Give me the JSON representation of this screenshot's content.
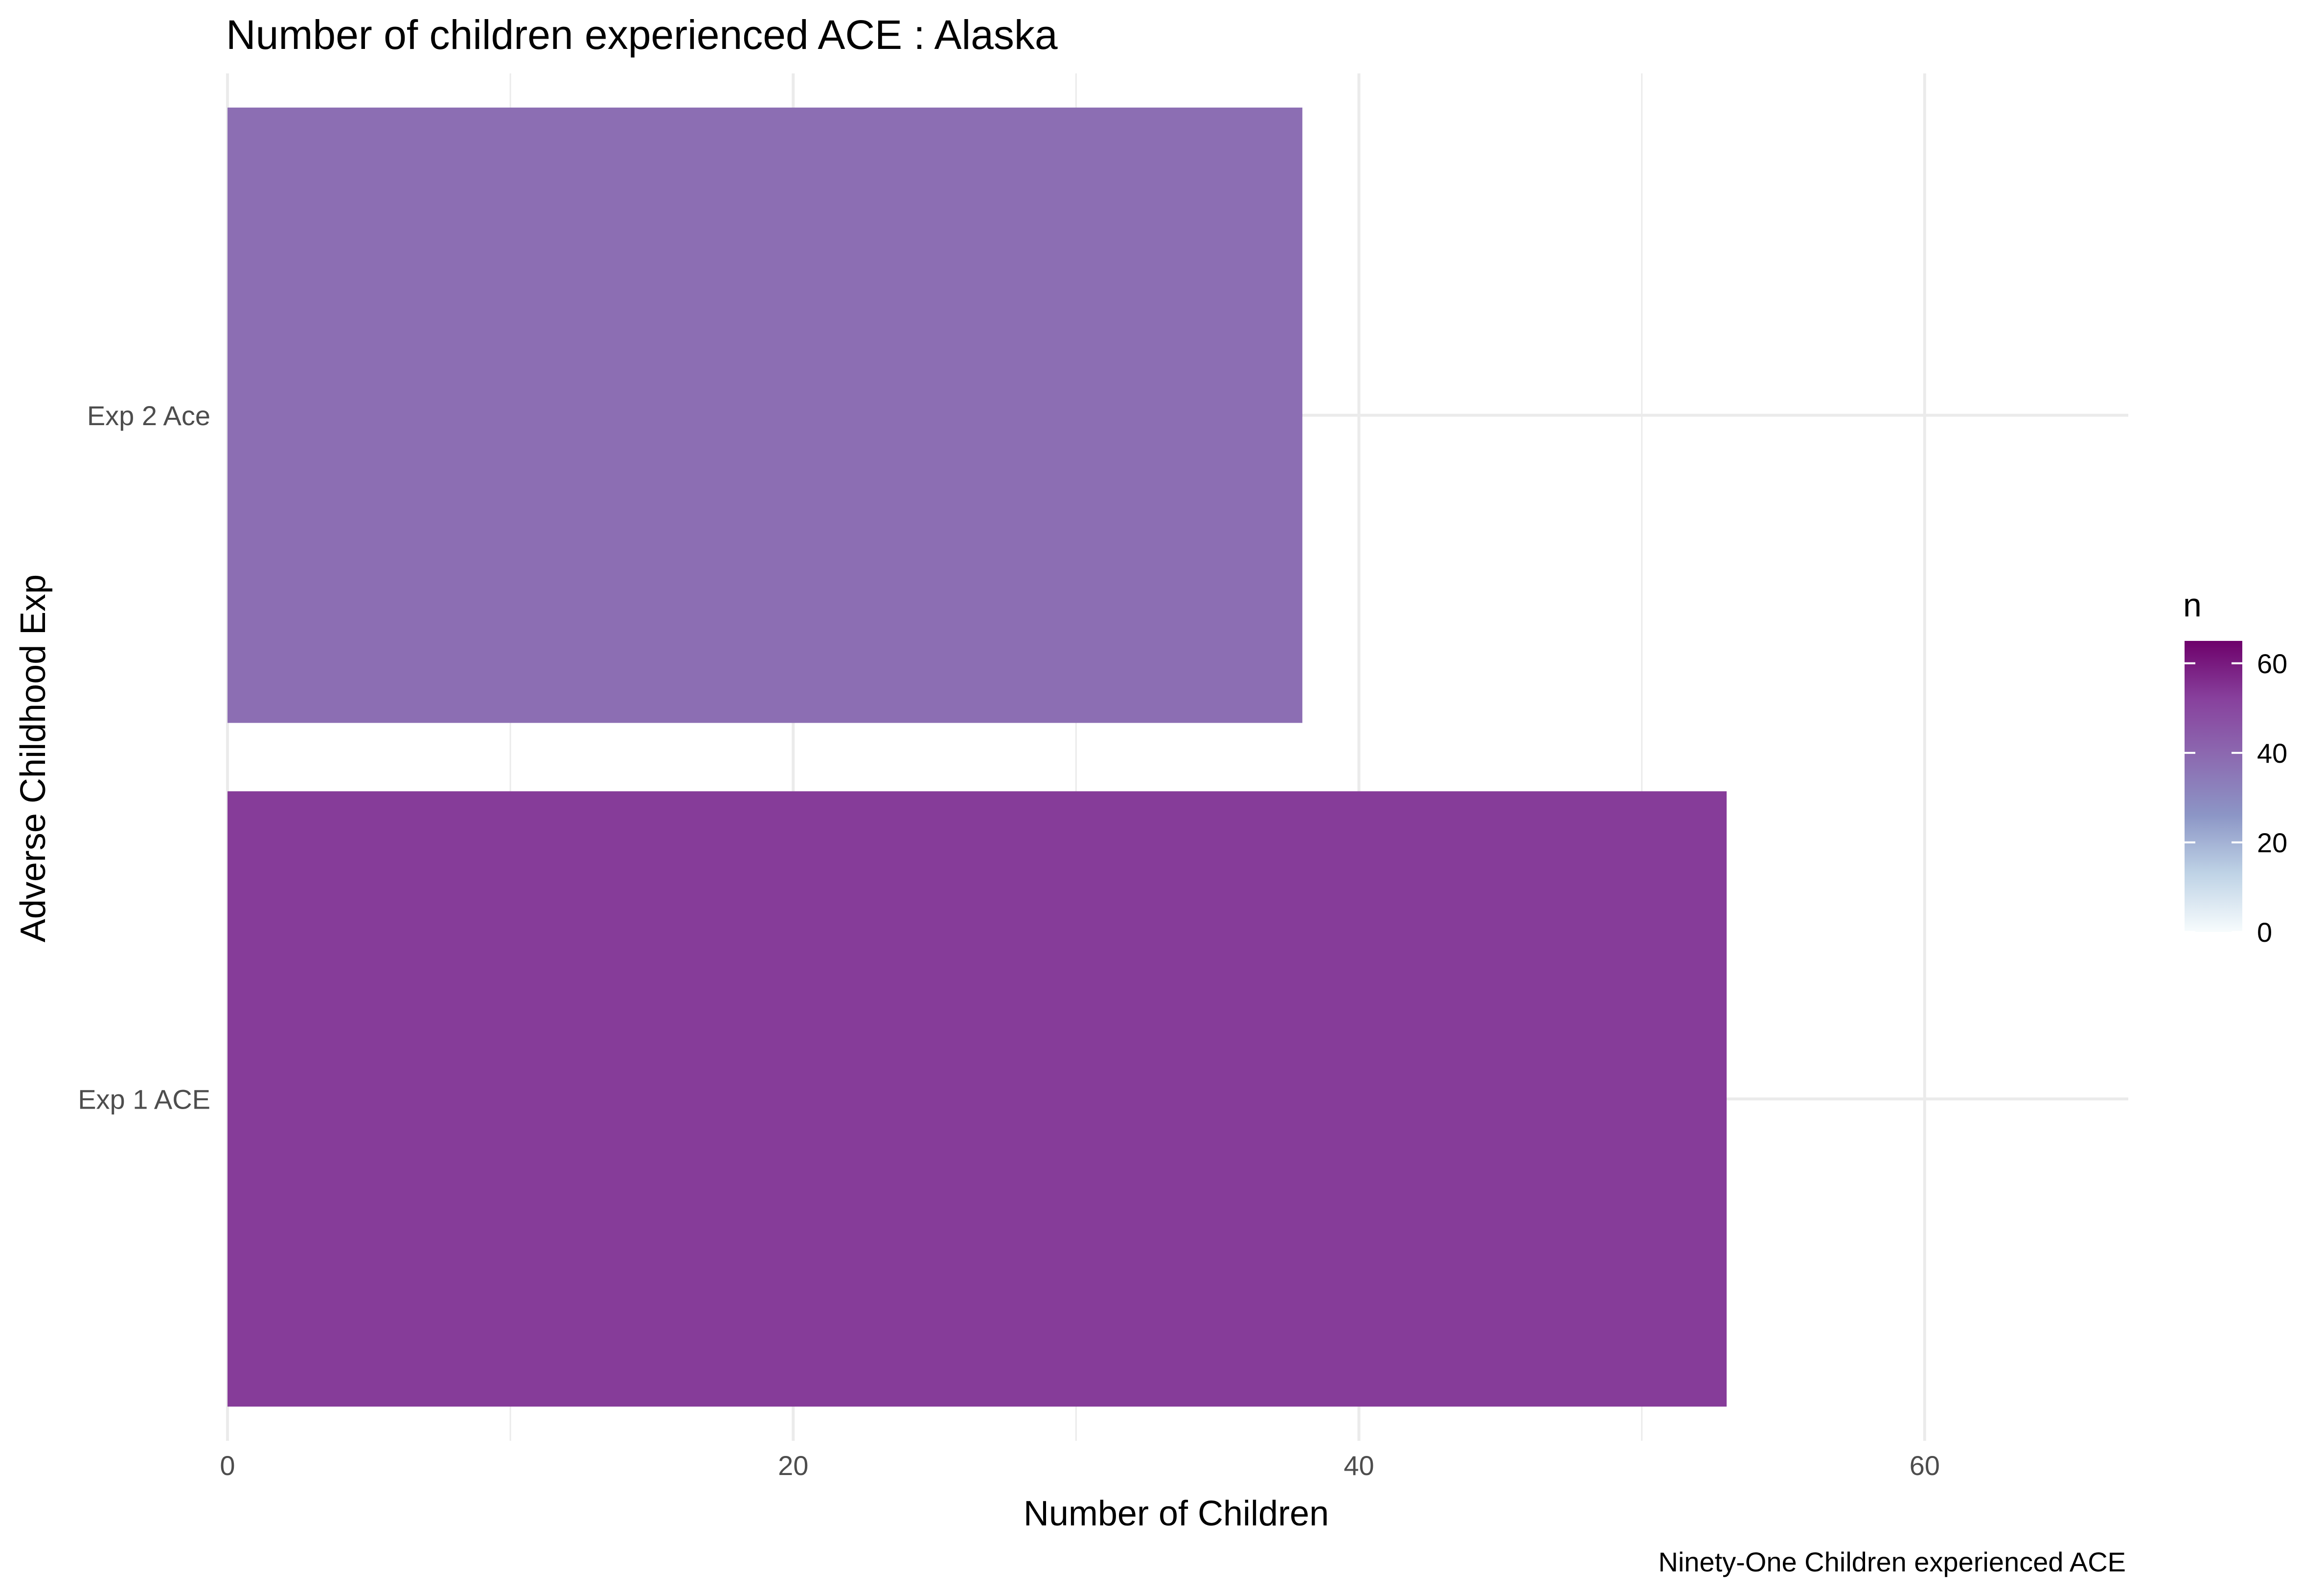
{
  "chart_data": {
    "type": "bar",
    "orientation": "horizontal",
    "title": "Number of children experienced ACE : Alaska",
    "xlabel": "Number of Children",
    "ylabel": "Adverse Childhood Exp",
    "caption": "Ninety-One Children experienced ACE",
    "categories": [
      "Exp 1 ACE",
      "Exp 2 Ace"
    ],
    "values": [
      53,
      38
    ],
    "xlim": [
      0,
      67.2
    ],
    "xticks": [
      0,
      20,
      40,
      60
    ],
    "grid": true,
    "legend": {
      "title": "n",
      "placement": "right",
      "type": "colorbar",
      "range": [
        0,
        65
      ],
      "ticks": [
        0,
        20,
        40,
        60
      ],
      "colors": [
        "#f7fcfd",
        "#bfd3e6",
        "#8c96c6",
        "#8c6bb1",
        "#88419d",
        "#6e016b"
      ]
    }
  }
}
